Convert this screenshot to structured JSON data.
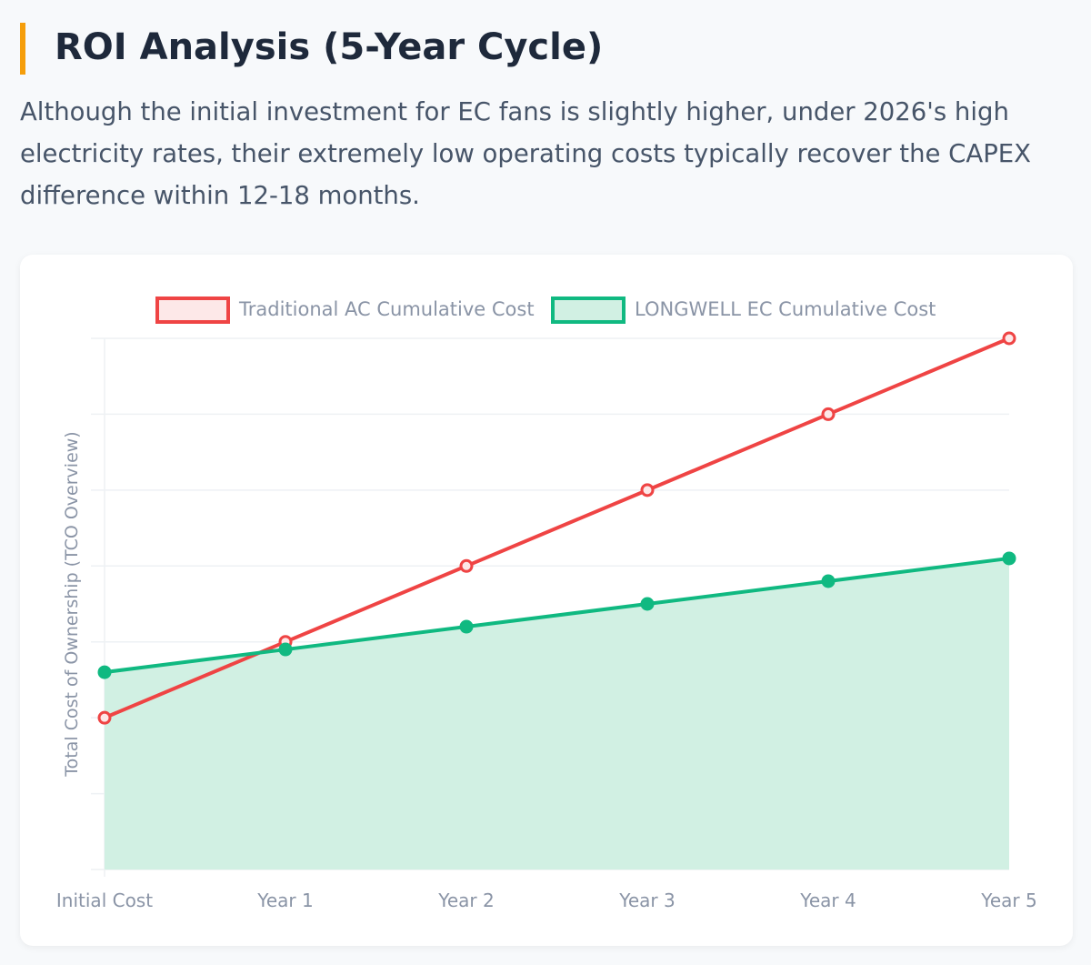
{
  "header": {
    "title": "ROI Analysis (5-Year Cycle)",
    "description": "Although the initial investment for EC fans is slightly higher, under 2026's high electricity rates, their extremely low operating costs typically recover the CAPEX difference within 12-18 months.",
    "accent_color": "#f59e0b"
  },
  "chart_data": {
    "type": "line",
    "categories": [
      "Initial Cost",
      "Year 1",
      "Year 2",
      "Year 3",
      "Year 4",
      "Year 5"
    ],
    "series": [
      {
        "name": "Traditional AC Cumulative Cost",
        "values": [
          20,
          30,
          40,
          50,
          60,
          70
        ],
        "color": "#ef4444",
        "fill": false
      },
      {
        "name": "LONGWELL EC Cumulative Cost",
        "values": [
          26,
          29,
          32,
          35,
          38,
          41
        ],
        "color": "#10b981",
        "fill": true
      }
    ],
    "title": "",
    "xlabel": "",
    "ylabel": "Total Cost of Ownership (TCO Overview)",
    "ylim": [
      0,
      70
    ],
    "y_tick_labels_shown": false,
    "grid": true,
    "legend": "top"
  }
}
